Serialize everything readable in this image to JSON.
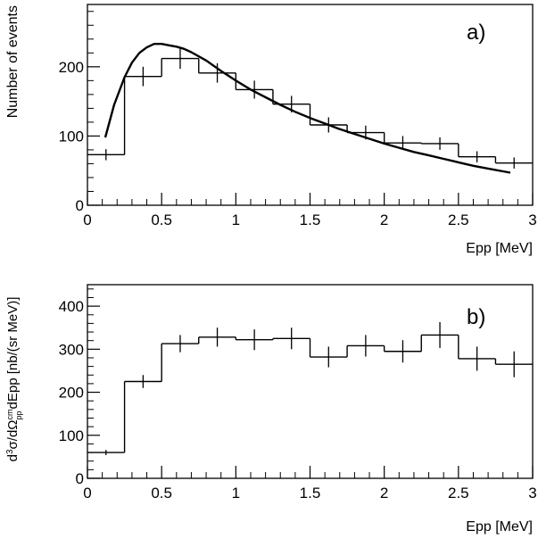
{
  "chart_data": [
    {
      "type": "histogram",
      "panel_label": "a)",
      "xlabel": "Epp [MeV]",
      "ylabel": "Number of events",
      "xlim": [
        0,
        3
      ],
      "ylim": [
        0,
        290
      ],
      "xticks": [
        0,
        0.5,
        1,
        1.5,
        2,
        2.5,
        3
      ],
      "xtick_labels": [
        "0",
        "0.5",
        "1",
        "1.5",
        "2",
        "2.5",
        "3"
      ],
      "yticks": [
        0,
        100,
        200
      ],
      "ytick_labels": [
        "0",
        "100",
        "200"
      ],
      "bins": [
        {
          "x0": 0.0,
          "x1": 0.25,
          "y": 73,
          "err": 8
        },
        {
          "x0": 0.25,
          "x1": 0.5,
          "y": 186,
          "err": 14
        },
        {
          "x0": 0.5,
          "x1": 0.75,
          "y": 212,
          "err": 15
        },
        {
          "x0": 0.75,
          "x1": 1.0,
          "y": 191,
          "err": 14
        },
        {
          "x0": 1.0,
          "x1": 1.25,
          "y": 167,
          "err": 13
        },
        {
          "x0": 1.25,
          "x1": 1.5,
          "y": 146,
          "err": 12
        },
        {
          "x0": 1.5,
          "x1": 1.75,
          "y": 116,
          "err": 11
        },
        {
          "x0": 1.75,
          "x1": 2.0,
          "y": 105,
          "err": 10
        },
        {
          "x0": 2.0,
          "x1": 2.25,
          "y": 90,
          "err": 10
        },
        {
          "x0": 2.25,
          "x1": 2.5,
          "y": 89,
          "err": 9
        },
        {
          "x0": 2.5,
          "x1": 2.75,
          "y": 70,
          "err": 8
        },
        {
          "x0": 2.75,
          "x1": 3.0,
          "y": 61,
          "err": 8
        }
      ],
      "curve": {
        "x": [
          0.12,
          0.18,
          0.25,
          0.3,
          0.35,
          0.4,
          0.45,
          0.5,
          0.55,
          0.6,
          0.65,
          0.7,
          0.8,
          0.9,
          1.0,
          1.1,
          1.2,
          1.3,
          1.4,
          1.5,
          1.6,
          1.7,
          1.8,
          1.9,
          2.0,
          2.1,
          2.2,
          2.3,
          2.4,
          2.5,
          2.6,
          2.7,
          2.85
        ],
        "y": [
          98,
          145,
          185,
          206,
          220,
          228,
          233,
          233,
          231,
          229,
          226,
          221,
          209,
          194,
          180,
          167,
          156,
          145,
          135,
          126,
          118,
          110,
          103,
          96,
          89,
          83,
          77,
          72,
          67,
          62,
          57,
          53,
          47
        ]
      }
    },
    {
      "type": "histogram",
      "panel_label": "b)",
      "xlabel": "Epp [MeV]",
      "ylabel": "d³σ/dΩcmppdEpp [nb/(sr MeV)]",
      "ylabel_parts": {
        "d": "d",
        "three": "3",
        "sigma_omega": "σ/dΩ",
        "sup": "cm",
        "sub": "pp",
        "rest": "dEpp  [nb/(sr MeV)]"
      },
      "xlim": [
        0,
        3
      ],
      "ylim": [
        0,
        450
      ],
      "xticks": [
        0,
        0.5,
        1,
        1.5,
        2,
        2.5,
        3
      ],
      "xtick_labels": [
        "0",
        "0.5",
        "1",
        "1.5",
        "2",
        "2.5",
        "3"
      ],
      "yticks": [
        0,
        100,
        200,
        300,
        400
      ],
      "ytick_labels": [
        "0",
        "100",
        "200",
        "300",
        "400"
      ],
      "bins": [
        {
          "x0": 0.0,
          "x1": 0.25,
          "y": 60,
          "err": 6
        },
        {
          "x0": 0.25,
          "x1": 0.5,
          "y": 225,
          "err": 15
        },
        {
          "x0": 0.5,
          "x1": 0.75,
          "y": 313,
          "err": 20
        },
        {
          "x0": 0.75,
          "x1": 1.0,
          "y": 328,
          "err": 22
        },
        {
          "x0": 1.0,
          "x1": 1.25,
          "y": 322,
          "err": 24
        },
        {
          "x0": 1.25,
          "x1": 1.5,
          "y": 325,
          "err": 25
        },
        {
          "x0": 1.5,
          "x1": 1.75,
          "y": 282,
          "err": 24
        },
        {
          "x0": 1.75,
          "x1": 2.0,
          "y": 308,
          "err": 25
        },
        {
          "x0": 2.0,
          "x1": 2.25,
          "y": 295,
          "err": 26
        },
        {
          "x0": 2.25,
          "x1": 2.5,
          "y": 333,
          "err": 30
        },
        {
          "x0": 2.5,
          "x1": 2.75,
          "y": 278,
          "err": 28
        },
        {
          "x0": 2.75,
          "x1": 3.0,
          "y": 265,
          "err": 30
        }
      ]
    }
  ]
}
